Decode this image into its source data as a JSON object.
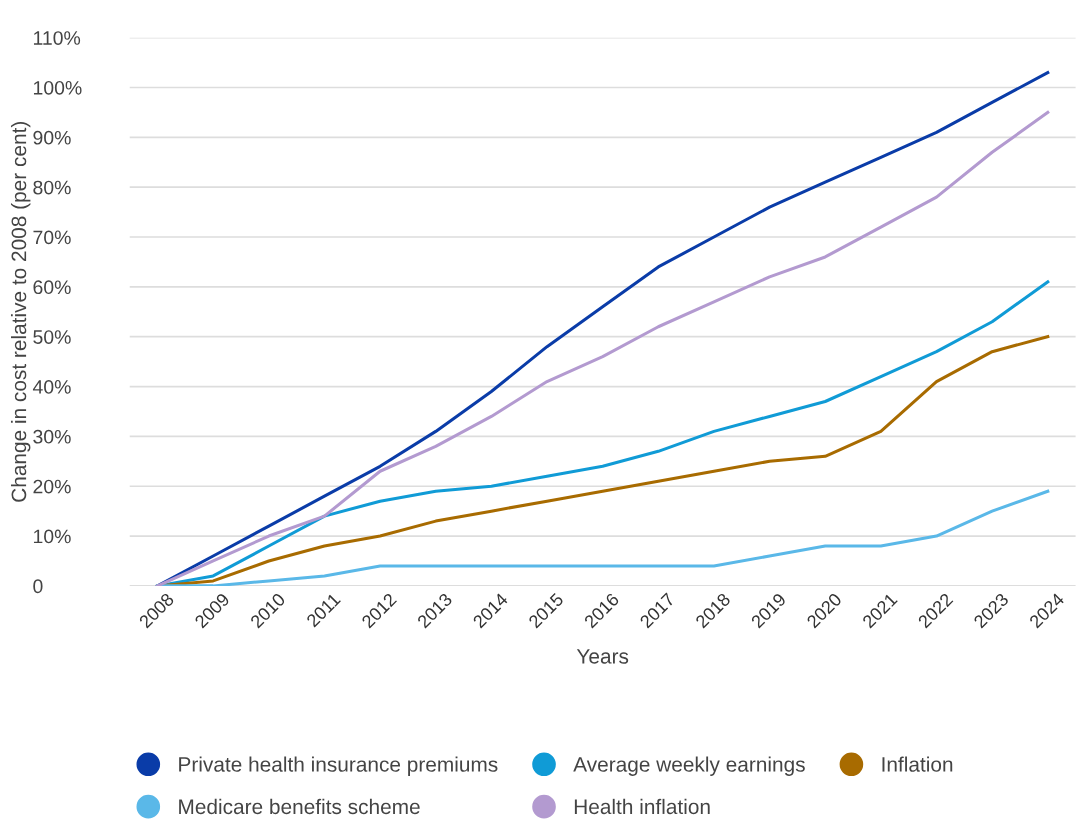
{
  "chart_data": {
    "type": "line",
    "xlabel": "Years",
    "ylabel": "Change in cost relative to 2008 (per cent)",
    "categories": [
      "2008",
      "2009",
      "2010",
      "2011",
      "2012",
      "2013",
      "2014",
      "2015",
      "2016",
      "2017",
      "2018",
      "2019",
      "2020",
      "2021",
      "2022",
      "2023",
      "2024"
    ],
    "series": [
      {
        "name": "Private health insurance premiums",
        "color": "#0a3ca8",
        "values": [
          0,
          6,
          12,
          18,
          24,
          31,
          39,
          48,
          56,
          64,
          70,
          76,
          81,
          86,
          91,
          97,
          103
        ]
      },
      {
        "name": "Average weekly earnings",
        "color": "#109bd6",
        "values": [
          0,
          2,
          8,
          14,
          17,
          19,
          20,
          22,
          24,
          27,
          31,
          34,
          37,
          42,
          47,
          53,
          61
        ]
      },
      {
        "name": "Inflation",
        "color": "#a86b00",
        "values": [
          0,
          1,
          5,
          8,
          10,
          13,
          15,
          17,
          19,
          21,
          23,
          25,
          26,
          31,
          41,
          47,
          50
        ]
      },
      {
        "name": "Medicare benefits scheme",
        "color": "#5ab8e8",
        "values": [
          0,
          0,
          1,
          2,
          4,
          4,
          4,
          4,
          4,
          4,
          4,
          6,
          8,
          8,
          10,
          15,
          19
        ]
      },
      {
        "name": "Health inflation",
        "color": "#b39ad0",
        "values": [
          0,
          5,
          10,
          14,
          23,
          28,
          34,
          41,
          46,
          52,
          57,
          62,
          66,
          72,
          78,
          87,
          95
        ]
      }
    ],
    "ylim": [
      0,
      110
    ],
    "yticks": [
      {
        "value": 0,
        "label": "0"
      },
      {
        "value": 10,
        "label": "10%"
      },
      {
        "value": 20,
        "label": "20%"
      },
      {
        "value": 30,
        "label": "30%"
      },
      {
        "value": 40,
        "label": "40%"
      },
      {
        "value": 50,
        "label": "50%"
      },
      {
        "value": 60,
        "label": "60%"
      },
      {
        "value": 70,
        "label": "70%"
      },
      {
        "value": 80,
        "label": "80%"
      },
      {
        "value": 90,
        "label": "90%"
      },
      {
        "value": 100,
        "label": "100%"
      },
      {
        "value": 110,
        "label": "110%"
      }
    ],
    "grid": "y",
    "legend": "bottom",
    "line_style": "solid"
  }
}
